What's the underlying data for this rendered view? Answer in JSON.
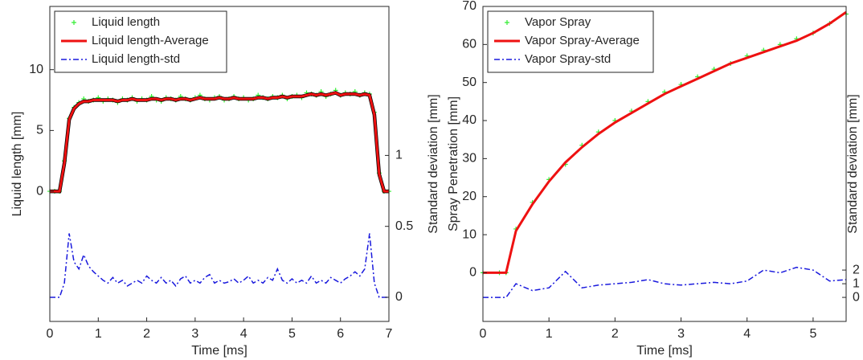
{
  "chart_data": [
    {
      "type": "line",
      "xlabel": "Time [ms]",
      "ylabel": "Liquid length [mm]",
      "y2label": "Standard deviation [mm]",
      "xlim": [
        0,
        7
      ],
      "xticks": [
        0,
        1,
        2,
        3,
        4,
        5,
        6,
        7
      ],
      "ylim": [
        -10.7,
        15.2
      ],
      "yticks": [
        0,
        5,
        10
      ],
      "y2lim": [
        -0.17,
        2.05
      ],
      "y2ticks": [
        0,
        0.5,
        1
      ],
      "legend": "upper-left",
      "x": [
        0,
        0.1,
        0.2,
        0.3,
        0.4,
        0.5,
        0.6,
        0.7,
        0.8,
        0.9,
        1,
        1.1,
        1.2,
        1.3,
        1.4,
        1.5,
        1.6,
        1.7,
        1.8,
        1.9,
        2,
        2.1,
        2.2,
        2.3,
        2.4,
        2.5,
        2.6,
        2.7,
        2.8,
        2.9,
        3,
        3.1,
        3.2,
        3.3,
        3.4,
        3.5,
        3.6,
        3.7,
        3.8,
        3.9,
        4,
        4.1,
        4.2,
        4.3,
        4.4,
        4.5,
        4.6,
        4.7,
        4.8,
        4.9,
        5,
        5.1,
        5.2,
        5.3,
        5.4,
        5.5,
        5.6,
        5.7,
        5.8,
        5.9,
        6,
        6.1,
        6.2,
        6.3,
        6.4,
        6.5,
        6.6,
        6.7,
        6.8,
        6.9,
        7
      ],
      "series": [
        {
          "name": "Liquid length",
          "color": "#33ee33",
          "mode": "markers",
          "values": [
            0,
            0,
            0,
            2.5,
            6.0,
            6.9,
            7.3,
            7.6,
            7.4,
            7.5,
            7.7,
            7.4,
            7.6,
            7.5,
            7.3,
            7.6,
            7.5,
            7.7,
            7.4,
            7.6,
            7.5,
            7.8,
            7.5,
            7.4,
            7.7,
            7.6,
            7.5,
            7.8,
            7.6,
            7.5,
            7.7,
            7.9,
            7.6,
            7.5,
            7.7,
            7.8,
            7.5,
            7.6,
            7.8,
            7.6,
            7.7,
            7.5,
            7.6,
            7.9,
            7.7,
            7.6,
            7.8,
            7.7,
            7.9,
            7.6,
            7.8,
            7.9,
            7.7,
            8.1,
            8.0,
            7.9,
            8.2,
            7.8,
            8.0,
            8.3,
            7.9,
            8.1,
            8.0,
            8.2,
            7.9,
            8.1,
            8.0,
            6.5,
            1.5,
            0,
            0
          ]
        },
        {
          "name": "Liquid length-Average",
          "color": "#ee1111",
          "mode": "line",
          "outline": "#000000",
          "values": [
            0,
            0,
            0,
            2.3,
            5.9,
            6.8,
            7.2,
            7.4,
            7.4,
            7.5,
            7.5,
            7.5,
            7.5,
            7.5,
            7.4,
            7.5,
            7.5,
            7.6,
            7.5,
            7.5,
            7.5,
            7.6,
            7.6,
            7.5,
            7.6,
            7.6,
            7.5,
            7.6,
            7.6,
            7.5,
            7.6,
            7.7,
            7.6,
            7.6,
            7.6,
            7.7,
            7.6,
            7.6,
            7.7,
            7.6,
            7.6,
            7.6,
            7.6,
            7.7,
            7.7,
            7.6,
            7.7,
            7.7,
            7.8,
            7.7,
            7.8,
            7.8,
            7.8,
            7.9,
            8.0,
            7.9,
            8.0,
            7.9,
            8.0,
            8.1,
            7.9,
            8.0,
            8.0,
            8.0,
            7.9,
            8.0,
            7.9,
            6.3,
            1.4,
            0,
            0
          ]
        },
        {
          "name": "Liquid length-std",
          "color": "#1a1add",
          "mode": "dashdot",
          "axis": "y2",
          "values": [
            0,
            0,
            0,
            0.1,
            0.45,
            0.25,
            0.2,
            0.3,
            0.22,
            0.18,
            0.15,
            0.12,
            0.1,
            0.14,
            0.1,
            0.12,
            0.08,
            0.1,
            0.12,
            0.1,
            0.15,
            0.12,
            0.1,
            0.14,
            0.1,
            0.12,
            0.08,
            0.13,
            0.15,
            0.1,
            0.12,
            0.1,
            0.14,
            0.16,
            0.1,
            0.12,
            0.1,
            0.11,
            0.13,
            0.1,
            0.12,
            0.15,
            0.1,
            0.12,
            0.1,
            0.14,
            0.12,
            0.2,
            0.12,
            0.1,
            0.13,
            0.1,
            0.12,
            0.1,
            0.15,
            0.1,
            0.12,
            0.1,
            0.14,
            0.12,
            0.1,
            0.13,
            0.15,
            0.18,
            0.15,
            0.2,
            0.45,
            0.1,
            0,
            0,
            0
          ]
        }
      ]
    },
    {
      "type": "line",
      "xlabel": "Time [ms]",
      "ylabel": "Spray Penetration [mm]",
      "y2label": "Standard deviation [mm]",
      "xlim": [
        0,
        5.5
      ],
      "xticks": [
        0,
        1,
        2,
        3,
        4,
        5
      ],
      "ylim": [
        -12.8,
        70
      ],
      "yticks": [
        0,
        10,
        20,
        30,
        40,
        50,
        60,
        70
      ],
      "y2lim": [
        -1.76,
        21.3
      ],
      "y2ticks": [
        0,
        1,
        2
      ],
      "legend": "upper-left",
      "x": [
        0,
        0.25,
        0.35,
        0.5,
        0.75,
        1,
        1.25,
        1.5,
        1.75,
        2,
        2.25,
        2.5,
        2.75,
        3,
        3.25,
        3.5,
        3.75,
        4,
        4.25,
        4.5,
        4.75,
        5,
        5.25,
        5.5
      ],
      "series": [
        {
          "name": "Vapor Spray",
          "color": "#33ee33",
          "mode": "markers",
          "values": [
            0,
            0,
            0,
            11.5,
            18.5,
            24.5,
            28.5,
            33.5,
            37,
            40,
            42.5,
            45,
            47.5,
            49.5,
            51.5,
            53.5,
            55,
            57,
            58.5,
            60,
            61.5,
            63,
            65.5,
            68
          ]
        },
        {
          "name": "Vapor Spray-Average",
          "color": "#ee1111",
          "mode": "line",
          "values": [
            0,
            0,
            0,
            11,
            18,
            24,
            29,
            33,
            36.5,
            39.5,
            42,
            44.5,
            47,
            49,
            51,
            53,
            55,
            56.5,
            58,
            59.5,
            61,
            63,
            65.5,
            68.5
          ]
        },
        {
          "name": "Vapor Spray-std",
          "color": "#1a1add",
          "mode": "dashdot",
          "axis": "y2",
          "values": [
            0,
            0,
            0,
            1,
            0.5,
            0.7,
            1.9,
            0.7,
            0.9,
            1.0,
            1.1,
            1.3,
            1.0,
            0.9,
            1.0,
            1.1,
            1.0,
            1.2,
            2.0,
            1.8,
            2.2,
            2.0,
            1.2,
            1.3
          ]
        }
      ]
    }
  ]
}
